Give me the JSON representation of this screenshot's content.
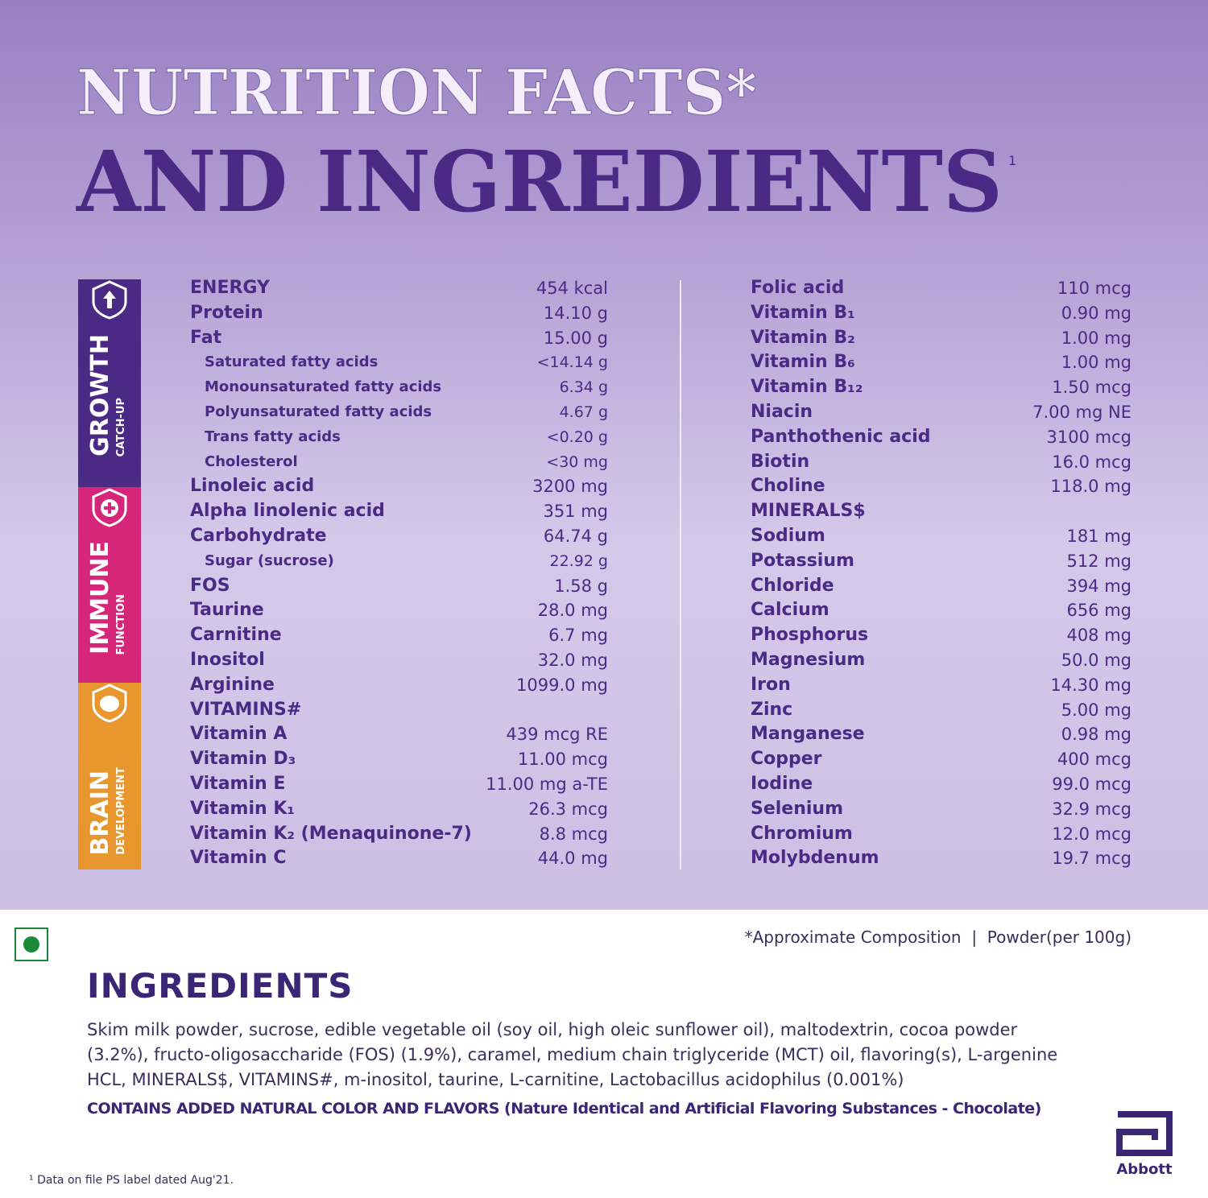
{
  "header": {
    "title_line1": "NUTRITION FACTS*",
    "title_line2": "AND INGREDIENTS",
    "title_sup": "1"
  },
  "side_labels": [
    {
      "main": "GROWTH",
      "sub": "CATCH-UP"
    },
    {
      "main": "IMMUNE",
      "sub": "FUNCTION"
    },
    {
      "main": "BRAIN",
      "sub": "DEVELOPMENT"
    }
  ],
  "nutrition": {
    "left": [
      {
        "name": "ENERGY",
        "value": "454 kcal"
      },
      {
        "name": "Protein",
        "value": "14.10 g"
      },
      {
        "name": "Fat",
        "value": "15.00 g",
        "sub": [
          {
            "name": "Saturated fatty acids",
            "value": "<14.14 g"
          },
          {
            "name": "Monounsaturated fatty acids",
            "value": "6.34 g"
          },
          {
            "name": "Polyunsaturated fatty acids",
            "value": "4.67 g"
          },
          {
            "name": "Trans fatty acids",
            "value": "<0.20 g"
          },
          {
            "name": "Cholesterol",
            "value": "<30 mg"
          }
        ]
      },
      {
        "name": "Linoleic acid",
        "value": "3200 mg"
      },
      {
        "name": "Alpha linolenic acid",
        "value": "351 mg"
      },
      {
        "name": "Carbohydrate",
        "value": "64.74 g",
        "sub": [
          {
            "name": "Sugar (sucrose)",
            "value": "22.92 g"
          }
        ]
      },
      {
        "name": "FOS",
        "value": "1.58 g"
      },
      {
        "name": "Taurine",
        "value": "28.0 mg"
      },
      {
        "name": "Carnitine",
        "value": "6.7 mg"
      },
      {
        "name": "Inositol",
        "value": "32.0 mg"
      },
      {
        "name": "Arginine",
        "value": "1099.0 mg"
      },
      {
        "heading": "VITAMINS#"
      },
      {
        "name": "Vitamin A",
        "value": "439 mcg RE"
      },
      {
        "name": "Vitamin D₃",
        "value": "11.00 mcg"
      },
      {
        "name": "Vitamin E",
        "value": "11.00 mg a-TE"
      },
      {
        "name": "Vitamin K₁",
        "value": "26.3 mcg"
      },
      {
        "name": "Vitamin K₂ (Menaquinone-7)",
        "value": "8.8 mcg"
      },
      {
        "name": "Vitamin C",
        "value": "44.0 mg"
      }
    ],
    "right": [
      {
        "name": "Folic acid",
        "value": "110 mcg"
      },
      {
        "name": "Vitamin B₁",
        "value": "0.90 mg"
      },
      {
        "name": "Vitamin B₂",
        "value": "1.00 mg"
      },
      {
        "name": "Vitamin B₆",
        "value": "1.00 mg"
      },
      {
        "name": "Vitamin B₁₂",
        "value": "1.50 mcg"
      },
      {
        "name": "Niacin",
        "value": "7.00 mg NE"
      },
      {
        "name": "Panthothenic acid",
        "value": "3100 mcg"
      },
      {
        "name": "Biotin",
        "value": "16.0 mcg"
      },
      {
        "name": "Choline",
        "value": "118.0 mg"
      },
      {
        "heading": "MINERALS$"
      },
      {
        "name": "Sodium",
        "value": "181 mg"
      },
      {
        "name": "Potassium",
        "value": "512 mg"
      },
      {
        "name": "Chloride",
        "value": "394 mg"
      },
      {
        "name": "Calcium",
        "value": "656 mg"
      },
      {
        "name": "Phosphorus",
        "value": "408 mg"
      },
      {
        "name": "Magnesium",
        "value": "50.0 mg"
      },
      {
        "name": "Iron",
        "value": "14.30 mg"
      },
      {
        "name": "Zinc",
        "value": "5.00 mg"
      },
      {
        "name": "Manganese",
        "value": "0.98 mg"
      },
      {
        "name": "Copper",
        "value": "400 mcg"
      },
      {
        "name": "Iodine",
        "value": "99.0 mcg"
      },
      {
        "name": "Selenium",
        "value": "32.9 mcg"
      },
      {
        "name": "Chromium",
        "value": "12.0 mcg"
      },
      {
        "name": "Molybdenum",
        "value": "19.7 mcg"
      }
    ]
  },
  "composition_note": "*Approximate Composition  |  Powder(per 100g)",
  "ingredients": {
    "title": "INGREDIENTS",
    "text": "Skim milk powder, sucrose, edible vegetable oil (soy oil, high oleic sunflower oil), maltodextrin, cocoa powder (3.2%), fructo-oligosaccharide (FOS) (1.9%), caramel, medium chain triglyceride (MCT) oil, flavoring(s), L-argenine HCL, MINERALS$, VITAMINS#, m-inositol, taurine, L-carnitine, Lactobacillus acidophilus (0.001%)",
    "contains": "CONTAINS ADDED NATURAL COLOR AND FLAVORS (Nature Identical and Artificial Flavoring Substances - Chocolate)"
  },
  "footnote": "¹ Data on file PS label dated Aug'21.",
  "brand": "Abbott"
}
